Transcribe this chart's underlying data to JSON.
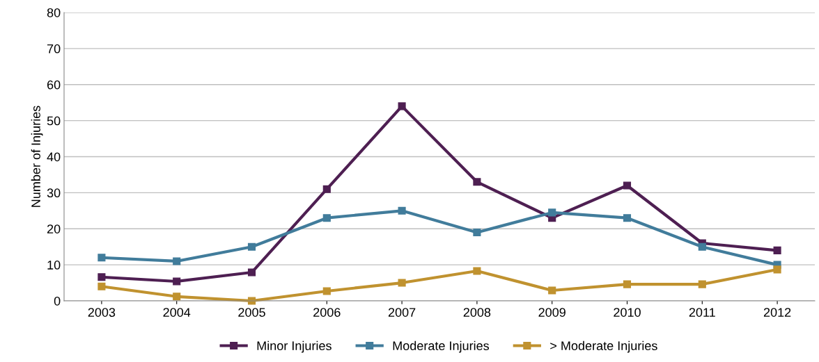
{
  "chart_data": {
    "type": "line",
    "ylabel": "Number of Injuries",
    "categories": [
      "2003",
      "2004",
      "2005",
      "2006",
      "2007",
      "2008",
      "2009",
      "2010",
      "2011",
      "2012"
    ],
    "series": [
      {
        "name": "Minor Injuries",
        "color": "#4e1f52",
        "values": [
          6.6,
          5.4,
          7.9,
          31,
          54,
          33,
          23,
          32,
          16,
          14
        ]
      },
      {
        "name": "Moderate Injuries",
        "color": "#417c9b",
        "values": [
          12,
          11,
          15,
          23,
          25,
          19,
          24.5,
          23,
          15,
          10
        ]
      },
      {
        "name": "> Moderate Injuries",
        "color": "#c0922f",
        "values": [
          4,
          1.2,
          0,
          2.7,
          5,
          8.3,
          2.9,
          4.6,
          4.6,
          8.7
        ]
      }
    ],
    "ylim": [
      0,
      80
    ],
    "yticks": [
      0,
      10,
      20,
      30,
      40,
      50,
      60,
      70,
      80
    ],
    "grid": "y",
    "legend": "bottom",
    "marker": "square",
    "line_style": "solid"
  }
}
